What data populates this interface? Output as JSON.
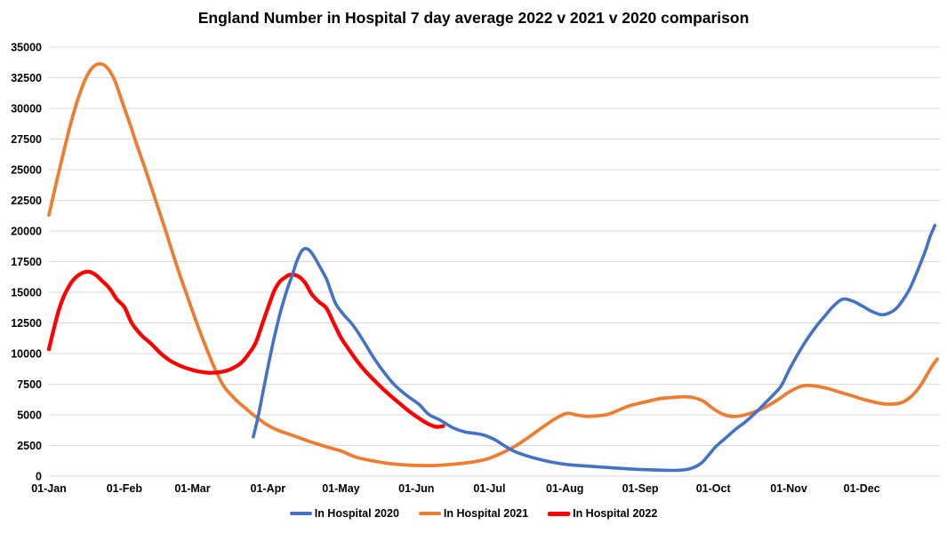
{
  "chart_data": {
    "type": "line",
    "title": "England Number in Hospital 7 day average 2022 v 2021 v 2020 comparison",
    "x_axis": {
      "tick_labels": [
        "01-Jan",
        "01-Feb",
        "01-Mar",
        "01-Apr",
        "01-May",
        "01-Jun",
        "01-Jul",
        "01-Aug",
        "01-Sep",
        "01-Oct",
        "01-Nov",
        "01-Dec"
      ],
      "tick_days": [
        0,
        31,
        59,
        90,
        120,
        151,
        181,
        212,
        243,
        273,
        304,
        334
      ],
      "range_days": [
        0,
        365
      ],
      "unit": "day of year"
    },
    "y_axis": {
      "min": 0,
      "max": 35000,
      "step": 2500,
      "tick_labels": [
        "0",
        "2500",
        "5000",
        "7500",
        "10000",
        "12500",
        "15000",
        "17500",
        "20000",
        "22500",
        "25000",
        "27500",
        "30000",
        "32500",
        "35000"
      ]
    },
    "grid": true,
    "legend_position": "bottom",
    "colors": {
      "grid": "#D9D9D9",
      "text": "#000000",
      "background": "#FFFFFF"
    },
    "series": [
      {
        "name": "In Hospital 2020",
        "color": "#4472C4",
        "points": [
          [
            84,
            3200
          ],
          [
            86,
            4900
          ],
          [
            88,
            6900
          ],
          [
            90,
            8900
          ],
          [
            92,
            10800
          ],
          [
            94,
            12500
          ],
          [
            96,
            14000
          ],
          [
            98,
            15300
          ],
          [
            100,
            16400
          ],
          [
            102,
            17600
          ],
          [
            104,
            18400
          ],
          [
            106,
            18550
          ],
          [
            108,
            18200
          ],
          [
            111,
            17200
          ],
          [
            114,
            16100
          ],
          [
            116,
            15000
          ],
          [
            118,
            14000
          ],
          [
            121,
            13200
          ],
          [
            125,
            12300
          ],
          [
            129,
            11100
          ],
          [
            133,
            9800
          ],
          [
            137,
            8650
          ],
          [
            142,
            7440
          ],
          [
            147,
            6590
          ],
          [
            152,
            5870
          ],
          [
            156,
            5050
          ],
          [
            161,
            4540
          ],
          [
            166,
            3950
          ],
          [
            171,
            3600
          ],
          [
            175,
            3490
          ],
          [
            179,
            3330
          ],
          [
            183,
            3000
          ],
          [
            187,
            2500
          ],
          [
            191,
            2050
          ],
          [
            195,
            1750
          ],
          [
            199,
            1500
          ],
          [
            203,
            1300
          ],
          [
            207,
            1130
          ],
          [
            211,
            1000
          ],
          [
            216,
            890
          ],
          [
            221,
            825
          ],
          [
            227,
            740
          ],
          [
            233,
            660
          ],
          [
            239,
            590
          ],
          [
            245,
            530
          ],
          [
            251,
            490
          ],
          [
            256,
            470
          ],
          [
            260,
            490
          ],
          [
            264,
            640
          ],
          [
            268,
            1050
          ],
          [
            271,
            1700
          ],
          [
            274,
            2400
          ],
          [
            278,
            3100
          ],
          [
            282,
            3800
          ],
          [
            286,
            4400
          ],
          [
            290,
            5100
          ],
          [
            294,
            5900
          ],
          [
            298,
            6700
          ],
          [
            301,
            7400
          ],
          [
            304,
            8600
          ],
          [
            307,
            9700
          ],
          [
            310,
            10700
          ],
          [
            313,
            11600
          ],
          [
            316,
            12400
          ],
          [
            319,
            13100
          ],
          [
            322,
            13800
          ],
          [
            326,
            14430
          ],
          [
            330,
            14300
          ],
          [
            334,
            13900
          ],
          [
            338,
            13450
          ],
          [
            342,
            13170
          ],
          [
            345,
            13280
          ],
          [
            348,
            13650
          ],
          [
            351,
            14400
          ],
          [
            354,
            15400
          ],
          [
            357,
            16800
          ],
          [
            360,
            18300
          ],
          [
            362,
            19500
          ],
          [
            364,
            20450
          ]
        ]
      },
      {
        "name": "In Hospital 2021",
        "color": "#ED7D31",
        "points": [
          [
            0,
            21300
          ],
          [
            3,
            23900
          ],
          [
            6,
            26400
          ],
          [
            9,
            28800
          ],
          [
            12,
            30800
          ],
          [
            15,
            32400
          ],
          [
            18,
            33350
          ],
          [
            21,
            33630
          ],
          [
            24,
            33300
          ],
          [
            27,
            32300
          ],
          [
            30,
            30600
          ],
          [
            33,
            28900
          ],
          [
            36,
            27100
          ],
          [
            39,
            25400
          ],
          [
            42,
            23600
          ],
          [
            45,
            21800
          ],
          [
            48,
            20000
          ],
          [
            51,
            18100
          ],
          [
            54,
            16300
          ],
          [
            57,
            14600
          ],
          [
            60,
            12900
          ],
          [
            63,
            11300
          ],
          [
            66,
            9800
          ],
          [
            69,
            8400
          ],
          [
            72,
            7300
          ],
          [
            75,
            6600
          ],
          [
            78,
            6000
          ],
          [
            81,
            5500
          ],
          [
            84,
            5000
          ],
          [
            87,
            4550
          ],
          [
            90,
            4150
          ],
          [
            94,
            3750
          ],
          [
            99,
            3400
          ],
          [
            104,
            3050
          ],
          [
            109,
            2700
          ],
          [
            114,
            2400
          ],
          [
            120,
            2050
          ],
          [
            126,
            1560
          ],
          [
            132,
            1280
          ],
          [
            138,
            1080
          ],
          [
            144,
            950
          ],
          [
            150,
            880
          ],
          [
            156,
            860
          ],
          [
            162,
            905
          ],
          [
            168,
            1010
          ],
          [
            174,
            1150
          ],
          [
            180,
            1400
          ],
          [
            186,
            1880
          ],
          [
            192,
            2500
          ],
          [
            198,
            3300
          ],
          [
            204,
            4150
          ],
          [
            209,
            4800
          ],
          [
            213,
            5120
          ],
          [
            217,
            4980
          ],
          [
            221,
            4880
          ],
          [
            225,
            4920
          ],
          [
            230,
            5060
          ],
          [
            238,
            5700
          ],
          [
            245,
            6050
          ],
          [
            251,
            6320
          ],
          [
            257,
            6430
          ],
          [
            261,
            6480
          ],
          [
            265,
            6400
          ],
          [
            269,
            6100
          ],
          [
            273,
            5500
          ],
          [
            277,
            5050
          ],
          [
            281,
            4870
          ],
          [
            285,
            4950
          ],
          [
            290,
            5250
          ],
          [
            295,
            5700
          ],
          [
            300,
            6300
          ],
          [
            304,
            6850
          ],
          [
            308,
            7250
          ],
          [
            311,
            7400
          ],
          [
            315,
            7350
          ],
          [
            320,
            7150
          ],
          [
            325,
            6850
          ],
          [
            330,
            6550
          ],
          [
            335,
            6250
          ],
          [
            340,
            6000
          ],
          [
            345,
            5870
          ],
          [
            350,
            5980
          ],
          [
            354,
            6450
          ],
          [
            358,
            7350
          ],
          [
            361,
            8350
          ],
          [
            363,
            9000
          ],
          [
            365,
            9550
          ]
        ]
      },
      {
        "name": "In Hospital 2022",
        "color": "#FF0000",
        "points": [
          [
            0,
            10350
          ],
          [
            2,
            12000
          ],
          [
            4,
            13500
          ],
          [
            6,
            14600
          ],
          [
            8,
            15400
          ],
          [
            10,
            16000
          ],
          [
            13,
            16500
          ],
          [
            16,
            16680
          ],
          [
            19,
            16450
          ],
          [
            22,
            15900
          ],
          [
            25,
            15300
          ],
          [
            28,
            14400
          ],
          [
            31,
            13800
          ],
          [
            34,
            12500
          ],
          [
            38,
            11500
          ],
          [
            42,
            10800
          ],
          [
            46,
            10000
          ],
          [
            50,
            9400
          ],
          [
            54,
            9000
          ],
          [
            58,
            8720
          ],
          [
            62,
            8520
          ],
          [
            66,
            8430
          ],
          [
            70,
            8480
          ],
          [
            73,
            8600
          ],
          [
            76,
            8850
          ],
          [
            79,
            9250
          ],
          [
            82,
            9950
          ],
          [
            85,
            10900
          ],
          [
            88,
            12600
          ],
          [
            91,
            14300
          ],
          [
            93,
            15300
          ],
          [
            95,
            15900
          ],
          [
            97,
            16200
          ],
          [
            99,
            16430
          ],
          [
            102,
            16350
          ],
          [
            105,
            15850
          ],
          [
            108,
            14850
          ],
          [
            111,
            14200
          ],
          [
            114,
            13700
          ],
          [
            117,
            12500
          ],
          [
            120,
            11300
          ],
          [
            123,
            10400
          ],
          [
            126,
            9550
          ],
          [
            129,
            8800
          ],
          [
            132,
            8150
          ],
          [
            135,
            7550
          ],
          [
            138,
            6980
          ],
          [
            141,
            6450
          ],
          [
            144,
            5950
          ],
          [
            147,
            5450
          ],
          [
            150,
            5000
          ],
          [
            153,
            4600
          ],
          [
            156,
            4250
          ],
          [
            159,
            4020
          ],
          [
            162,
            4080
          ]
        ]
      }
    ]
  }
}
